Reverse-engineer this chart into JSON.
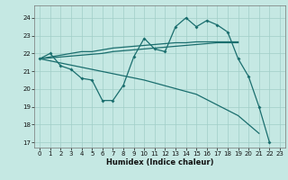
{
  "xlabel": "Humidex (Indice chaleur)",
  "bg_color": "#c5e8e3",
  "grid_color": "#a0cdc7",
  "line_color": "#1a6e6e",
  "xlim": [
    -0.5,
    23.5
  ],
  "ylim": [
    16.7,
    24.7
  ],
  "yticks": [
    17,
    18,
    19,
    20,
    21,
    22,
    23,
    24
  ],
  "xticks": [
    0,
    1,
    2,
    3,
    4,
    5,
    6,
    7,
    8,
    9,
    10,
    11,
    12,
    13,
    14,
    15,
    16,
    17,
    18,
    19,
    20,
    21,
    22,
    23
  ],
  "curve1_x": [
    0,
    1,
    2,
    3,
    4,
    5,
    6,
    7,
    8,
    9,
    10,
    11,
    12,
    13,
    14,
    15,
    16,
    17,
    18,
    19,
    20,
    21,
    22
  ],
  "curve1_y": [
    21.7,
    22.0,
    21.3,
    21.1,
    20.6,
    20.5,
    19.35,
    19.35,
    20.2,
    21.8,
    22.85,
    22.25,
    22.1,
    23.5,
    24.0,
    23.5,
    23.85,
    23.6,
    23.2,
    21.7,
    20.7,
    19.0,
    17.0
  ],
  "trend1_x": [
    0,
    1,
    2,
    3,
    4,
    5,
    6,
    7,
    8,
    9,
    10,
    11,
    12,
    13,
    14,
    15,
    16,
    17,
    18,
    19
  ],
  "trend1_y": [
    21.7,
    21.8,
    21.9,
    22.0,
    22.1,
    22.1,
    22.2,
    22.3,
    22.35,
    22.4,
    22.45,
    22.5,
    22.55,
    22.6,
    22.6,
    22.65,
    22.65,
    22.65,
    22.65,
    22.65
  ],
  "trend2_x": [
    0,
    1,
    2,
    3,
    4,
    5,
    6,
    7,
    8,
    9,
    10,
    11,
    12,
    13,
    14,
    15,
    16,
    17,
    18,
    19
  ],
  "trend2_y": [
    21.7,
    21.75,
    21.8,
    21.85,
    21.9,
    21.95,
    22.0,
    22.1,
    22.15,
    22.2,
    22.25,
    22.3,
    22.35,
    22.4,
    22.45,
    22.5,
    22.55,
    22.6,
    22.6,
    22.6
  ],
  "diagonal_x": [
    0,
    5,
    10,
    15,
    19,
    20,
    21,
    22,
    23
  ],
  "diagonal_y": [
    21.7,
    21.1,
    20.5,
    19.7,
    18.5,
    18.0,
    17.5,
    null,
    null
  ]
}
